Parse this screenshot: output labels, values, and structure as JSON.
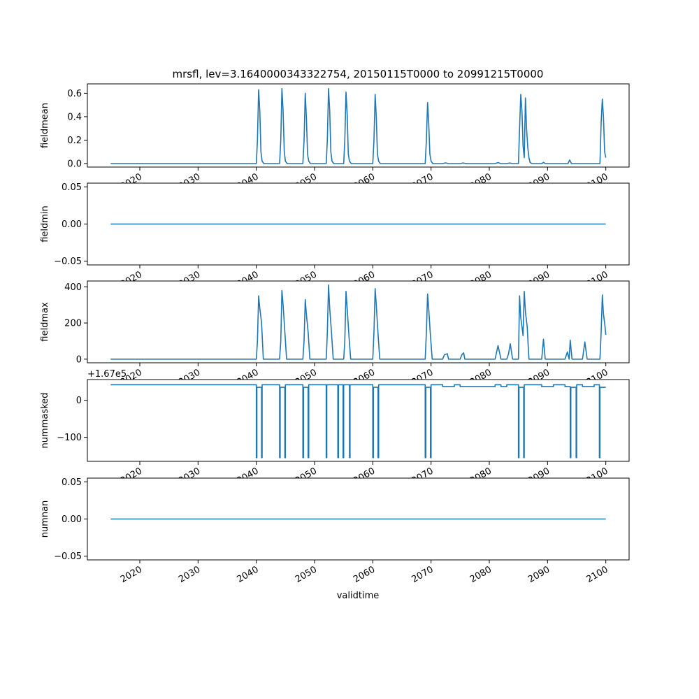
{
  "chart_data": {
    "type": "line",
    "title": "mrsfl, lev=3.1640000343322754, 20150115T0000 to 20991215T0000",
    "xlabel": "validtime",
    "line_color": "#1f77b4",
    "x_range": [
      2011,
      2104
    ],
    "x_tick_labels": [
      "2020",
      "2030",
      "2040",
      "2050",
      "2060",
      "2070",
      "2080",
      "2090",
      "2100"
    ],
    "grid": false,
    "panels": [
      {
        "ylabel": "fieldmean",
        "ylim": [
          -0.03,
          0.68
        ],
        "y_ticks": [
          0.0,
          0.2,
          0.4,
          0.6
        ],
        "y_tick_labels": [
          "0.0",
          "0.2",
          "0.4",
          "0.6"
        ],
        "offset_text": "",
        "x": [
          2015.0,
          2040.0,
          2040.2,
          2040.4,
          2040.6,
          2040.8,
          2041.0,
          2041.3,
          2044.0,
          2044.2,
          2044.4,
          2044.6,
          2044.8,
          2045.0,
          2045.3,
          2048.0,
          2048.2,
          2048.4,
          2048.6,
          2048.8,
          2049.0,
          2049.3,
          2052.0,
          2052.2,
          2052.4,
          2052.6,
          2052.8,
          2053.0,
          2053.3,
          2055.0,
          2055.2,
          2055.4,
          2055.6,
          2055.8,
          2056.0,
          2056.3,
          2060.0,
          2060.2,
          2060.4,
          2060.6,
          2060.8,
          2061.0,
          2061.3,
          2069.0,
          2069.2,
          2069.4,
          2069.6,
          2069.8,
          2070.0,
          2070.3,
          2072.0,
          2072.5,
          2073.0,
          2075.0,
          2075.5,
          2076.0,
          2081.0,
          2081.5,
          2082.0,
          2083.0,
          2083.5,
          2084.0,
          2085.0,
          2085.2,
          2085.4,
          2085.6,
          2085.8,
          2086.0,
          2086.2,
          2086.4,
          2086.6,
          2086.8,
          2087.0,
          2087.3,
          2089.0,
          2089.3,
          2089.6,
          2093.5,
          2093.8,
          2094.1,
          2099.0,
          2099.2,
          2099.4,
          2099.6,
          2099.8,
          2100.0
        ],
        "y": [
          0.0,
          0.0,
          0.2,
          0.63,
          0.45,
          0.1,
          0.02,
          0.0,
          0.0,
          0.2,
          0.64,
          0.45,
          0.1,
          0.02,
          0.0,
          0.0,
          0.2,
          0.6,
          0.4,
          0.08,
          0.02,
          0.0,
          0.0,
          0.2,
          0.64,
          0.45,
          0.1,
          0.02,
          0.0,
          0.0,
          0.2,
          0.61,
          0.42,
          0.08,
          0.02,
          0.0,
          0.0,
          0.2,
          0.59,
          0.4,
          0.08,
          0.02,
          0.0,
          0.0,
          0.2,
          0.52,
          0.35,
          0.08,
          0.02,
          0.0,
          0.0,
          0.006,
          0.0,
          0.0,
          0.005,
          0.0,
          0.0,
          0.008,
          0.0,
          0.0,
          0.005,
          0.0,
          0.0,
          0.3,
          0.59,
          0.45,
          0.15,
          0.05,
          0.56,
          0.3,
          0.14,
          0.05,
          0.01,
          0.0,
          0.0,
          0.01,
          0.0,
          0.0,
          0.03,
          0.0,
          0.0,
          0.35,
          0.55,
          0.4,
          0.1,
          0.05
        ]
      },
      {
        "ylabel": "fieldmin",
        "ylim": [
          -0.055,
          0.055
        ],
        "y_ticks": [
          -0.05,
          0.0,
          0.05
        ],
        "y_tick_labels": [
          "−0.05",
          "0.00",
          "0.05"
        ],
        "offset_text": "",
        "x": [
          2015.0,
          2100.0
        ],
        "y": [
          0.0,
          0.0
        ]
      },
      {
        "ylabel": "fieldmax",
        "ylim": [
          -20,
          432
        ],
        "y_ticks": [
          0,
          200,
          400
        ],
        "y_tick_labels": [
          "0",
          "200",
          "400"
        ],
        "offset_text": "",
        "x": [
          2015.0,
          2040.0,
          2040.2,
          2040.4,
          2040.6,
          2040.9,
          2041.2,
          2044.0,
          2044.2,
          2044.4,
          2044.6,
          2044.9,
          2045.2,
          2048.0,
          2048.2,
          2048.4,
          2048.6,
          2048.9,
          2049.2,
          2052.0,
          2052.2,
          2052.4,
          2052.6,
          2052.9,
          2053.2,
          2055.0,
          2055.2,
          2055.4,
          2055.6,
          2055.9,
          2056.2,
          2060.0,
          2060.2,
          2060.4,
          2060.6,
          2060.9,
          2061.2,
          2069.0,
          2069.2,
          2069.4,
          2069.6,
          2069.9,
          2070.2,
          2072.0,
          2072.3,
          2072.8,
          2073.0,
          2075.0,
          2075.3,
          2075.6,
          2075.8,
          2076.0,
          2081.0,
          2081.5,
          2082.0,
          2083.0,
          2083.3,
          2083.6,
          2084.0,
          2085.0,
          2085.2,
          2085.4,
          2085.6,
          2085.8,
          2086.0,
          2086.2,
          2086.5,
          2086.8,
          2087.1,
          2089.0,
          2089.3,
          2089.6,
          2093.0,
          2093.4,
          2093.7,
          2093.9,
          2094.2,
          2096.0,
          2096.4,
          2096.8,
          2099.0,
          2099.2,
          2099.4,
          2099.6,
          2099.8,
          2100.0
        ],
        "y": [
          0,
          0,
          100,
          350,
          280,
          200,
          0,
          0,
          100,
          380,
          300,
          150,
          0,
          0,
          100,
          330,
          250,
          150,
          0,
          0,
          150,
          410,
          280,
          150,
          0,
          0,
          100,
          375,
          280,
          130,
          0,
          0,
          150,
          390,
          300,
          140,
          0,
          0,
          150,
          360,
          280,
          130,
          0,
          0,
          25,
          30,
          0,
          0,
          25,
          35,
          0,
          0,
          0,
          75,
          0,
          0,
          30,
          85,
          0,
          0,
          350,
          230,
          180,
          130,
          375,
          260,
          180,
          0,
          0,
          0,
          110,
          0,
          0,
          40,
          0,
          105,
          0,
          0,
          95,
          0,
          0,
          150,
          355,
          250,
          200,
          135
        ]
      },
      {
        "ylabel": "nummasked",
        "ylim": [
          -165,
          56
        ],
        "y_ticks": [
          -100,
          0
        ],
        "y_tick_labels": [
          "−100",
          "0"
        ],
        "offset_text": "+1.67e5",
        "x": [
          2015.0,
          2040.0,
          2040.0,
          2040.1,
          2040.1,
          2040.9,
          2040.9,
          2041.0,
          2041.0,
          2044.0,
          2044.0,
          2044.1,
          2044.1,
          2044.9,
          2044.9,
          2045.0,
          2045.0,
          2048.0,
          2048.0,
          2048.1,
          2048.1,
          2048.9,
          2048.9,
          2049.0,
          2049.0,
          2052.0,
          2052.0,
          2052.1,
          2052.1,
          2054.0,
          2054.0,
          2054.1,
          2054.1,
          2054.9,
          2054.9,
          2055.0,
          2055.0,
          2056.0,
          2056.0,
          2056.1,
          2056.1,
          2060.0,
          2060.0,
          2060.1,
          2060.1,
          2060.9,
          2060.9,
          2061.0,
          2061.0,
          2069.0,
          2069.0,
          2069.1,
          2069.1,
          2069.9,
          2069.9,
          2070.0,
          2070.0,
          2072.0,
          2072.0,
          2074.0,
          2074.0,
          2075.0,
          2075.0,
          2081.0,
          2081.0,
          2082.0,
          2082.0,
          2083.0,
          2083.0,
          2085.0,
          2085.0,
          2085.1,
          2085.1,
          2085.9,
          2085.9,
          2086.0,
          2086.0,
          2089.0,
          2089.0,
          2091.0,
          2091.0,
          2093.0,
          2093.0,
          2093.9,
          2093.9,
          2094.0,
          2094.0,
          2094.9,
          2094.9,
          2095.0,
          2095.0,
          2096.0,
          2096.0,
          2098.0,
          2098.0,
          2098.9,
          2098.9,
          2099.0,
          2099.0,
          2100.0
        ],
        "y": [
          42,
          42,
          -155,
          -155,
          35,
          35,
          -155,
          -155,
          42,
          42,
          -155,
          -155,
          35,
          35,
          -155,
          -155,
          42,
          42,
          -155,
          -155,
          35,
          35,
          -155,
          -155,
          42,
          42,
          -155,
          -155,
          42,
          42,
          -155,
          -155,
          42,
          42,
          -155,
          -155,
          42,
          42,
          -155,
          -155,
          42,
          42,
          -155,
          -155,
          35,
          35,
          -155,
          -155,
          42,
          42,
          -155,
          -155,
          35,
          35,
          -155,
          -155,
          42,
          42,
          37,
          37,
          42,
          42,
          37,
          37,
          42,
          42,
          37,
          37,
          42,
          42,
          -155,
          -155,
          35,
          35,
          -155,
          -155,
          42,
          42,
          37,
          37,
          42,
          42,
          37,
          37,
          -155,
          -155,
          35,
          35,
          -155,
          -155,
          42,
          42,
          37,
          37,
          42,
          42,
          -155,
          -155,
          35,
          35
        ]
      },
      {
        "ylabel": "numnan",
        "ylim": [
          -0.055,
          0.055
        ],
        "y_ticks": [
          -0.05,
          0.0,
          0.05
        ],
        "y_tick_labels": [
          "−0.05",
          "0.00",
          "0.05"
        ],
        "offset_text": "",
        "x": [
          2015.0,
          2100.0
        ],
        "y": [
          0.0,
          0.0
        ]
      }
    ]
  }
}
